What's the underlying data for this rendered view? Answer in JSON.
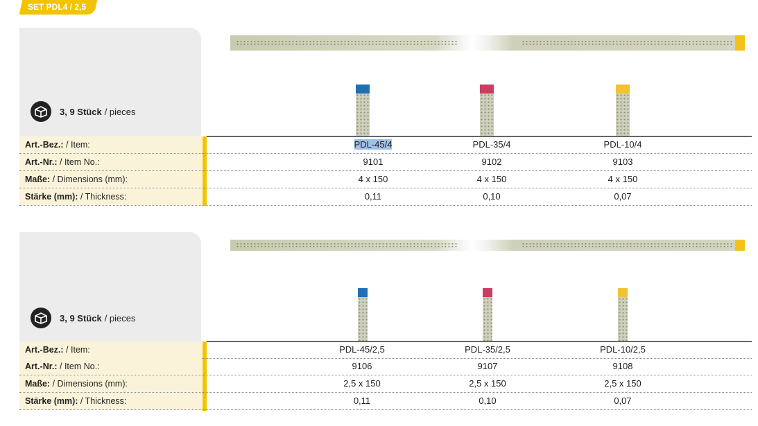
{
  "tag": "SET PDL4 / 2,5",
  "sections": [
    {
      "pieces_bold": "3, 9 Stück",
      "pieces_rest": "/ pieces",
      "labels": [
        {
          "bold": "Art.-Bez.:",
          "rest": "/ Item:"
        },
        {
          "bold": "Art.-Nr.:",
          "rest": "/ Item No.:"
        },
        {
          "bold": "Maße:",
          "rest": "/ Dimensions (mm):"
        },
        {
          "bold": "Stärke (mm):",
          "rest": "/ Thickness:"
        }
      ],
      "columns": [
        {
          "item": "PDL-45/4",
          "no": "9101",
          "dim": "4 x 150",
          "thick": "0,11",
          "color": "#1f6fb5"
        },
        {
          "item": "PDL-35/4",
          "no": "9102",
          "dim": "4 x 150",
          "thick": "0,10",
          "color": "#cc3d63"
        },
        {
          "item": "PDL-10/4",
          "no": "9103",
          "dim": "4 x 150",
          "thick": "0,07",
          "color": "#f2c232"
        }
      ]
    },
    {
      "pieces_bold": "3, 9 Stück",
      "pieces_rest": "/ pieces",
      "labels": [
        {
          "bold": "Art.-Bez.:",
          "rest": "/ Item:"
        },
        {
          "bold": "Art.-Nr.:",
          "rest": "/ Item No.:"
        },
        {
          "bold": "Maße:",
          "rest": "/ Dimensions (mm):"
        },
        {
          "bold": "Stärke (mm):",
          "rest": "/ Thickness:"
        }
      ],
      "columns": [
        {
          "item": "PDL-45/2,5",
          "no": "9106",
          "dim": "2,5 x 150",
          "thick": "0,11",
          "color": "#1f6fb5"
        },
        {
          "item": "PDL-35/2,5",
          "no": "9107",
          "dim": "2,5 x 150",
          "thick": "0,10",
          "color": "#cc3d63"
        },
        {
          "item": "PDL-10/2,5",
          "no": "9108",
          "dim": "2,5 x 150",
          "thick": "0,07",
          "color": "#f2c232"
        }
      ]
    }
  ],
  "accent": "#f2c300"
}
